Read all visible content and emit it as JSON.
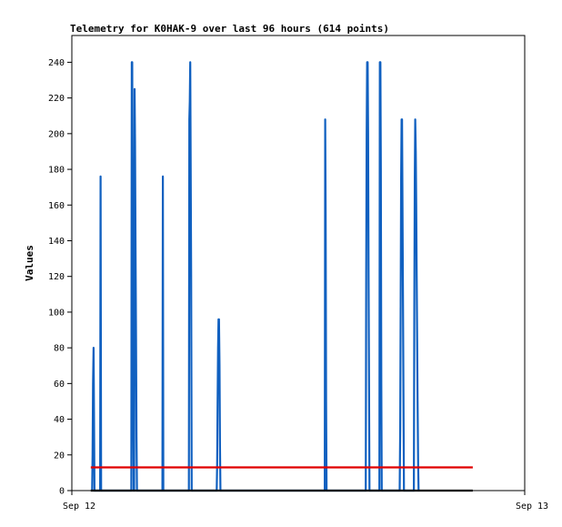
{
  "chart_data": {
    "type": "line",
    "title": "Telemetry for K0HAK-9 over last 96 hours (614 points)",
    "xlabel": "",
    "ylabel": "Values",
    "x_range_hours": [
      0,
      96
    ],
    "x_ticks": [
      {
        "label": "Sep 12",
        "hour": 0
      },
      {
        "label": "Sep 13",
        "hour": 96
      }
    ],
    "ylim": [
      0,
      255
    ],
    "y_ticks": [
      0,
      20,
      40,
      60,
      80,
      100,
      120,
      140,
      160,
      180,
      200,
      220,
      240
    ],
    "grid": false,
    "legend": "none",
    "series": [
      {
        "color": "#1060c0",
        "points": [
          [
            4.3,
            0
          ],
          [
            4.4,
            20
          ],
          [
            4.5,
            60
          ],
          [
            4.6,
            80
          ],
          [
            4.7,
            40
          ],
          [
            4.8,
            0
          ],
          [
            6.0,
            0
          ],
          [
            6.1,
            176
          ],
          [
            6.2,
            0
          ],
          [
            12.6,
            0
          ],
          [
            12.7,
            240
          ],
          [
            12.8,
            240
          ],
          [
            12.9,
            150
          ],
          [
            13.0,
            50
          ],
          [
            13.1,
            0
          ],
          [
            13.2,
            0
          ],
          [
            13.3,
            225
          ],
          [
            13.4,
            195
          ],
          [
            13.5,
            140
          ],
          [
            13.6,
            85
          ],
          [
            13.7,
            30
          ],
          [
            13.8,
            0
          ],
          [
            19.2,
            0
          ],
          [
            19.3,
            176
          ],
          [
            19.4,
            0
          ],
          [
            24.8,
            0
          ],
          [
            24.9,
            208
          ],
          [
            25.0,
            218
          ],
          [
            25.1,
            240
          ],
          [
            25.2,
            180
          ],
          [
            25.3,
            120
          ],
          [
            25.4,
            0
          ],
          [
            30.7,
            0
          ],
          [
            30.8,
            15
          ],
          [
            30.9,
            50
          ],
          [
            31.0,
            80
          ],
          [
            31.1,
            96
          ],
          [
            31.2,
            96
          ],
          [
            31.3,
            70
          ],
          [
            31.4,
            25
          ],
          [
            31.5,
            0
          ],
          [
            53.6,
            0
          ],
          [
            53.7,
            208
          ],
          [
            53.8,
            155
          ],
          [
            53.9,
            50
          ],
          [
            54.0,
            0
          ],
          [
            62.3,
            0
          ],
          [
            62.4,
            120
          ],
          [
            62.5,
            200
          ],
          [
            62.6,
            240
          ],
          [
            62.7,
            240
          ],
          [
            62.8,
            200
          ],
          [
            62.9,
            120
          ],
          [
            63.0,
            60
          ],
          [
            63.1,
            0
          ],
          [
            65.2,
            0
          ],
          [
            65.3,
            240
          ],
          [
            65.4,
            240
          ],
          [
            65.5,
            180
          ],
          [
            65.6,
            60
          ],
          [
            65.7,
            0
          ],
          [
            69.5,
            0
          ],
          [
            69.6,
            35
          ],
          [
            69.7,
            105
          ],
          [
            69.8,
            175
          ],
          [
            69.9,
            208
          ],
          [
            70.0,
            208
          ],
          [
            70.1,
            160
          ],
          [
            70.2,
            100
          ],
          [
            70.3,
            50
          ],
          [
            70.4,
            0
          ],
          [
            72.5,
            0
          ],
          [
            72.6,
            100
          ],
          [
            72.7,
            175
          ],
          [
            72.8,
            208
          ],
          [
            72.9,
            190
          ],
          [
            73.0,
            160
          ],
          [
            73.1,
            120
          ],
          [
            73.2,
            85
          ],
          [
            73.3,
            50
          ],
          [
            73.4,
            15
          ],
          [
            73.5,
            0
          ]
        ]
      },
      {
        "color": "#e00000",
        "points": [
          [
            4.0,
            13
          ],
          [
            85.0,
            13
          ]
        ]
      },
      {
        "color": "#000000",
        "points": [
          [
            4.0,
            0
          ],
          [
            85.0,
            0
          ]
        ]
      }
    ]
  }
}
